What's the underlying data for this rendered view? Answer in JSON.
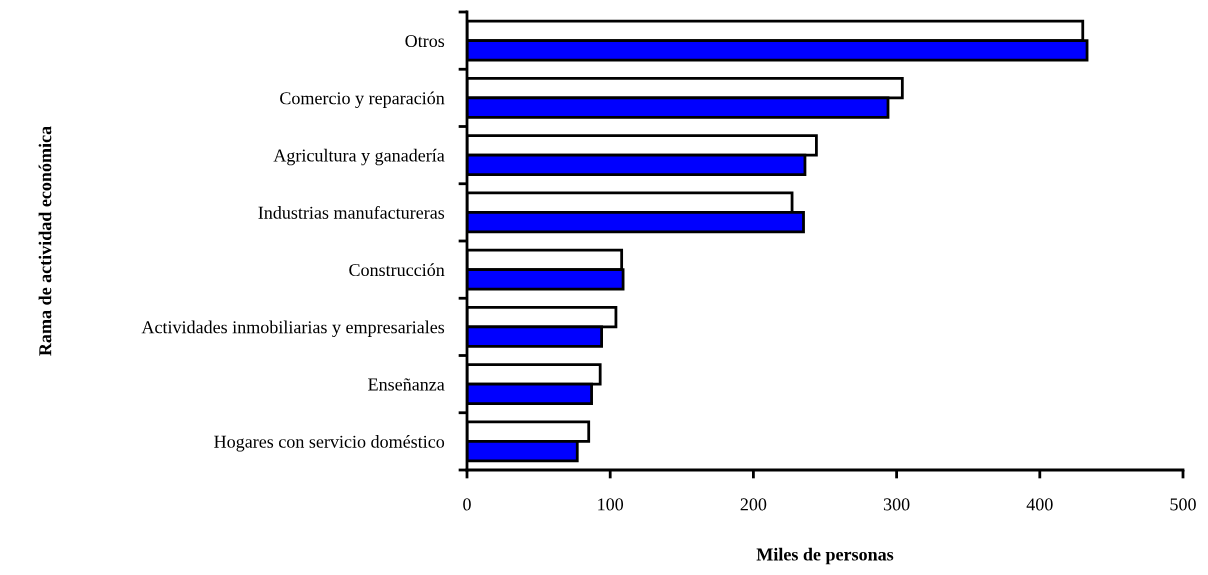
{
  "chart_data": {
    "type": "bar",
    "orientation": "horizontal",
    "xlabel": "Miles de personas",
    "ylabel": "Rama de actividad económica",
    "categories": [
      "Otros",
      "Comercio y reparación",
      "Agricultura y ganadería",
      "Industrias manufactureras",
      "Construcción",
      "Actividades inmobiliarias y empresariales",
      "Enseñanza",
      "Hogares con servicio doméstico"
    ],
    "series": [
      {
        "color": "#ffffff",
        "values": [
          430,
          304,
          244,
          227,
          108,
          104,
          93,
          85
        ]
      },
      {
        "color": "#0000ff",
        "values": [
          433,
          294,
          236,
          235,
          109,
          94,
          87,
          77
        ]
      }
    ],
    "xlim": [
      0,
      500
    ],
    "xticks": [
      0,
      100,
      200,
      300,
      400,
      500
    ],
    "grid": false,
    "legend": false
  }
}
